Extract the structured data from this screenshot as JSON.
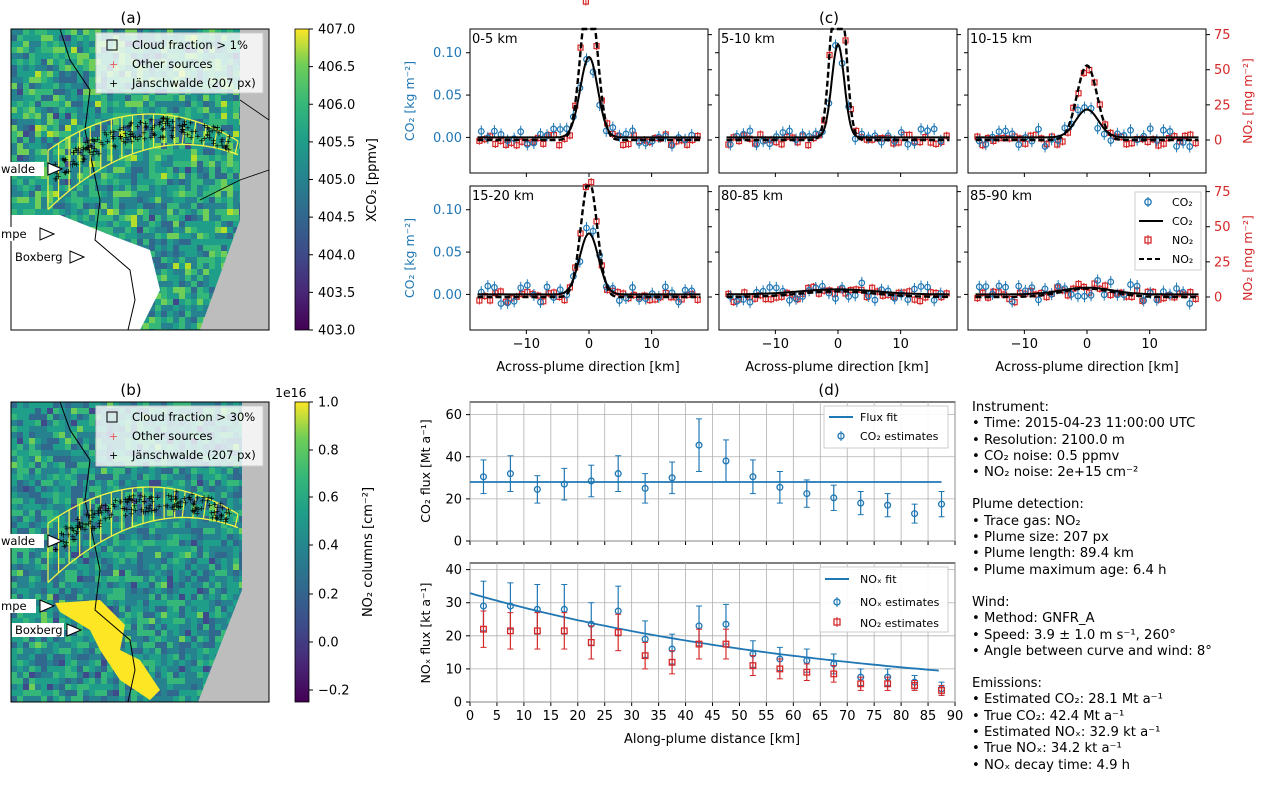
{
  "colors": {
    "co2": "#1f77b4",
    "no2": "#d62728",
    "fit": "#000000",
    "grey_land": "#bdbdbd",
    "box": "#f5f542"
  },
  "panel_a": {
    "title": "(a)",
    "legend": [
      "Cloud fraction > 1%",
      "Other sources",
      "Jänschwalde (207 px)"
    ],
    "labels": [
      "walde",
      "mpe",
      "Boxberg"
    ],
    "colorbar": {
      "label": "XCO₂ [ppmv]",
      "ticks": [
        "407.0",
        "406.5",
        "406.0",
        "405.5",
        "405.0",
        "404.5",
        "404.0",
        "403.5",
        "403.0"
      ]
    }
  },
  "panel_b": {
    "title": "(b)",
    "legend": [
      "Cloud fraction > 30%",
      "Other sources",
      "Jänschwalde (207 px)"
    ],
    "labels": [
      "walde",
      "mpe",
      "Boxberg"
    ],
    "colorbar": {
      "label": "NO₂ columns [cm⁻²]",
      "exponent": "1e16",
      "ticks": [
        "1.0",
        "0.8",
        "0.6",
        "0.4",
        "0.2",
        "0.0",
        "−0.2"
      ]
    }
  },
  "panel_c": {
    "title": "(c)",
    "ylabel_left": "CO₂ [kg m⁻²]",
    "ylabel_right": "NO₂ [mg m⁻²]",
    "xlabel": "Across-plume direction [km]",
    "xticks": [
      "−10",
      "0",
      "10"
    ],
    "yticks_left": [
      "0.00",
      "0.05",
      "0.10"
    ],
    "yticks_right": [
      "0",
      "25",
      "50",
      "75"
    ],
    "legend": [
      "CO₂",
      "CO₂",
      "NO₂",
      "NO₂"
    ],
    "subplots": [
      {
        "label": "0-5 km",
        "co2_peak": 0.095,
        "co2_sigma": 1.4,
        "no2_peak": 108,
        "no2_sigma": 1.3
      },
      {
        "label": "5-10 km",
        "co2_peak": 0.11,
        "co2_sigma": 1.0,
        "no2_peak": 132,
        "no2_sigma": 1.1
      },
      {
        "label": "10-15 km",
        "co2_peak": 0.033,
        "co2_sigma": 1.8,
        "no2_peak": 53,
        "no2_sigma": 1.6
      },
      {
        "label": "15-20 km",
        "co2_peak": 0.072,
        "co2_sigma": 1.5,
        "no2_peak": 83,
        "no2_sigma": 1.3
      },
      {
        "label": "80-85 km",
        "co2_peak": 0.006,
        "co2_sigma": 6.0,
        "no2_peak": 4,
        "no2_sigma": 6.0
      },
      {
        "label": "85-90 km",
        "co2_peak": 0.008,
        "co2_sigma": 4.0,
        "no2_peak": 6,
        "no2_sigma": 4.0
      }
    ]
  },
  "panel_d": {
    "title": "(d)",
    "xlabel": "Along-plume distance [km]",
    "xticks": [
      "0",
      "5",
      "10",
      "15",
      "20",
      "25",
      "30",
      "35",
      "40",
      "45",
      "50",
      "55",
      "60",
      "65",
      "70",
      "75",
      "80",
      "85",
      "90"
    ],
    "top": {
      "ylabel": "CO₂ flux [Mt a⁻¹]",
      "yticks": [
        "0",
        "20",
        "40",
        "60"
      ],
      "legend": [
        "Flux fit",
        "CO₂ estimates"
      ]
    },
    "bottom": {
      "ylabel": "NOₓ flux [kt a⁻¹]",
      "yticks": [
        "0",
        "10",
        "20",
        "30",
        "40"
      ],
      "legend": [
        "NOₓ fit",
        "NOₓ estimates",
        "NO₂ estimates"
      ]
    }
  },
  "chart_data": [
    {
      "type": "scatter",
      "title": "(d) CO₂ flux",
      "xlabel": "Along-plume distance [km]",
      "ylabel": "CO₂ flux [Mt a⁻¹]",
      "xlim": [
        0,
        90
      ],
      "ylim": [
        0,
        66
      ],
      "x": [
        2.5,
        7.5,
        12.5,
        17.5,
        22.5,
        27.5,
        32.5,
        37.5,
        42.5,
        47.5,
        52.5,
        57.5,
        62.5,
        67.5,
        72.5,
        77.5,
        82.5,
        87.5
      ],
      "series": [
        {
          "name": "CO₂ estimates",
          "values": [
            30.5,
            32,
            24.5,
            27,
            28.5,
            32,
            25,
            30,
            45.5,
            38,
            30.5,
            25.5,
            22.5,
            20.5,
            18,
            17,
            13,
            17.5
          ],
          "errors": [
            8,
            8.5,
            6.5,
            7.5,
            7.5,
            8.5,
            7,
            7.5,
            12.5,
            10,
            8,
            7.5,
            6.5,
            6,
            5.5,
            5.5,
            4.5,
            6
          ]
        },
        {
          "name": "Flux fit",
          "values": [
            28,
            28,
            28,
            28,
            28,
            28,
            28,
            28,
            28,
            28,
            28,
            28,
            28,
            28,
            28,
            28,
            28,
            28
          ]
        }
      ]
    },
    {
      "type": "scatter",
      "title": "(d) NOₓ flux",
      "xlabel": "Along-plume distance [km]",
      "ylabel": "NOₓ flux [kt a⁻¹]",
      "xlim": [
        0,
        90
      ],
      "ylim": [
        0,
        42
      ],
      "x": [
        2.5,
        7.5,
        12.5,
        17.5,
        22.5,
        27.5,
        32.5,
        37.5,
        42.5,
        47.5,
        52.5,
        57.5,
        62.5,
        67.5,
        72.5,
        77.5,
        82.5,
        87.5
      ],
      "series": [
        {
          "name": "NOₓ estimates",
          "values": [
            29,
            29,
            28,
            28,
            23.5,
            27.5,
            19,
            16,
            23,
            23.5,
            14.5,
            13,
            12.5,
            11.5,
            7.5,
            7.5,
            6,
            4
          ],
          "errors": [
            7.5,
            7,
            7.5,
            7.5,
            6.5,
            7.5,
            5.5,
            4.5,
            6,
            6,
            4,
            3.5,
            3.5,
            3,
            2.5,
            2.5,
            2,
            2
          ]
        },
        {
          "name": "NO₂ estimates",
          "values": [
            22,
            21.5,
            21.5,
            21.5,
            18,
            21,
            14,
            12,
            17.5,
            17.5,
            11,
            10,
            9,
            8.5,
            5.5,
            5.5,
            5,
            3.5
          ],
          "errors": [
            5.5,
            5.5,
            5.5,
            5.5,
            5,
            5.5,
            4,
            3.5,
            4.5,
            4.5,
            3,
            3,
            2.5,
            2.5,
            2,
            2,
            1.5,
            1.5
          ]
        },
        {
          "name": "NOₓ fit",
          "values": [
            31.1,
            29.1,
            27.2,
            25.4,
            23.8,
            22.3,
            20.8,
            19.5,
            18.2,
            17.0,
            15.9,
            14.9,
            14.0,
            13.1,
            12.2,
            11.4,
            10.7,
            10.0
          ]
        }
      ]
    }
  ],
  "info": {
    "instrument": {
      "heading": "Instrument:",
      "lines": [
        "• Time: 2015-04-23 11:00:00 UTC",
        "• Resolution: 2100.0 m",
        "• CO₂ noise: 0.5 ppmv",
        "• NO₂ noise: 2e+15 cm⁻²"
      ]
    },
    "detection": {
      "heading": "Plume detection:",
      "lines": [
        "• Trace gas: NO₂",
        "• Plume size: 207 px",
        "• Plume length: 89.4 km",
        "• Plume maximum age: 6.4 h"
      ]
    },
    "wind": {
      "heading": "Wind:",
      "lines": [
        "• Method: GNFR_A",
        "• Speed: 3.9 ± 1.0 m s⁻¹, 260°",
        "• Angle between curve and wind: 8°"
      ]
    },
    "emissions": {
      "heading": "Emissions:",
      "lines": [
        "• Estimated CO₂: 28.1 Mt a⁻¹",
        "• True CO₂: 42.4 Mt a⁻¹",
        "• Estimated NOₓ: 32.9 kt a⁻¹",
        "• True NOₓ: 34.2 kt a⁻¹",
        "• NOₓ decay time: 4.9 h"
      ]
    }
  }
}
